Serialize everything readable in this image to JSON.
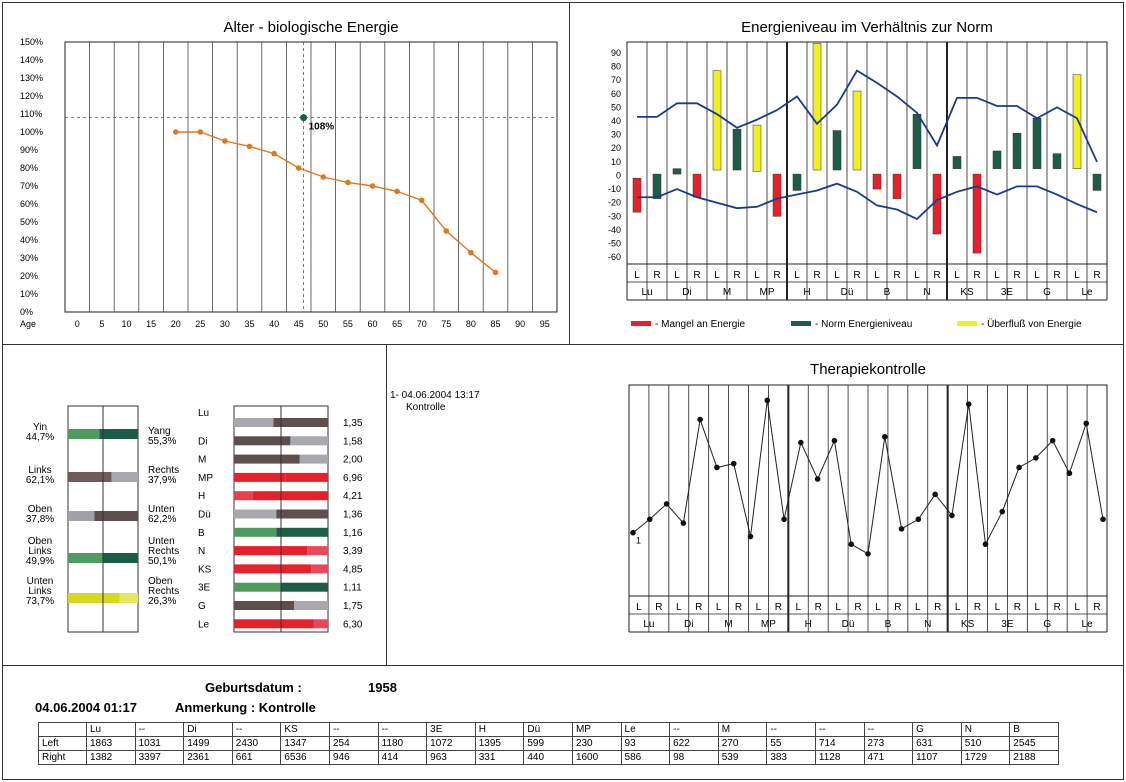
{
  "chart_data": [
    {
      "type": "line",
      "title": "Alter - biologische Energie",
      "xlabel": "Age",
      "x_ticks": [
        0,
        5,
        10,
        15,
        20,
        25,
        30,
        35,
        40,
        45,
        50,
        55,
        60,
        65,
        70,
        75,
        80,
        85,
        90,
        95
      ],
      "y_ticks": [
        "0%",
        "10%",
        "20%",
        "30%",
        "40%",
        "50%",
        "60%",
        "70%",
        "80%",
        "90%",
        "100%",
        "110%",
        "120%",
        "130%",
        "140%",
        "150%"
      ],
      "ylim": [
        0,
        150
      ],
      "x": [
        20,
        25,
        30,
        35,
        40,
        45,
        50,
        55,
        60,
        65,
        70,
        75,
        80,
        85
      ],
      "values": [
        100,
        100,
        95,
        92,
        88,
        80,
        75,
        72,
        70,
        67,
        62,
        45,
        33,
        22
      ],
      "marker": {
        "x": 46,
        "y": 108,
        "label": "108%"
      },
      "color": "#e07820"
    },
    {
      "type": "bar",
      "title": "Energieniveau im Verhältnis zur Norm",
      "y_ticks": [
        -60,
        -50,
        -40,
        -30,
        -20,
        -10,
        0,
        10,
        20,
        30,
        40,
        50,
        60,
        70,
        80,
        90
      ],
      "ylim": [
        -65,
        98
      ],
      "groups": [
        "Lu",
        "Di",
        "M",
        "MP",
        "H",
        "Dü",
        "B",
        "N",
        "KS",
        "3E",
        "G",
        "Le"
      ],
      "sides": [
        "L",
        "R"
      ],
      "bars": [
        {
          "top": -2,
          "bottom": -27,
          "type": "mangel"
        },
        {
          "top": 1,
          "bottom": -17,
          "type": "norm"
        },
        {
          "top": 5,
          "bottom": 1,
          "type": "norm"
        },
        {
          "top": 1,
          "bottom": -16,
          "type": "mangel"
        },
        {
          "top": 77,
          "bottom": 4,
          "type": "ueberfluss"
        },
        {
          "top": 34,
          "bottom": 4,
          "type": "norm"
        },
        {
          "top": 37,
          "bottom": 3,
          "type": "ueberfluss"
        },
        {
          "top": 1,
          "bottom": -30,
          "type": "mangel"
        },
        {
          "top": 1,
          "bottom": -11,
          "type": "norm"
        },
        {
          "top": 97,
          "bottom": 4,
          "type": "ueberfluss"
        },
        {
          "top": 33,
          "bottom": 4,
          "type": "norm"
        },
        {
          "top": 62,
          "bottom": 4,
          "type": "ueberfluss"
        },
        {
          "top": 1,
          "bottom": -10,
          "type": "mangel"
        },
        {
          "top": 1,
          "bottom": -17,
          "type": "mangel"
        },
        {
          "top": 45,
          "bottom": 5,
          "type": "norm"
        },
        {
          "top": 1,
          "bottom": -43,
          "type": "mangel"
        },
        {
          "top": 14,
          "bottom": 5,
          "type": "norm"
        },
        {
          "top": 1,
          "bottom": -57,
          "type": "mangel"
        },
        {
          "top": 18,
          "bottom": 5,
          "type": "norm"
        },
        {
          "top": 31,
          "bottom": 5,
          "type": "norm"
        },
        {
          "top": 42,
          "bottom": 5,
          "type": "norm"
        },
        {
          "top": 16,
          "bottom": 5,
          "type": "norm"
        },
        {
          "top": 74,
          "bottom": 5,
          "type": "ueberfluss"
        },
        {
          "top": 1,
          "bottom": -11,
          "type": "norm"
        }
      ],
      "upper_line": [
        43,
        43,
        53,
        53,
        45,
        35,
        41,
        48,
        58,
        38,
        52,
        77,
        68,
        58,
        46,
        22,
        57,
        57,
        51,
        51,
        42,
        50,
        42,
        10
      ],
      "lower_line": [
        -16,
        -16,
        -10,
        -16,
        -20,
        -24,
        -23,
        -17,
        -14,
        -11,
        -6,
        -12,
        -22,
        -25,
        -32,
        -18,
        -12,
        -8,
        -14,
        -8,
        -8,
        -14,
        -21,
        -27
      ],
      "legend": [
        {
          "label": "- Mangel an Energie",
          "color": "#e8202a"
        },
        {
          "label": "- Norm Energieniveau",
          "color": "#1e5c4a"
        },
        {
          "label": "- Überfluß von Energie",
          "color": "#f0f020"
        }
      ],
      "colors": {
        "mangel": "#e8202a",
        "norm": "#1e5c4a",
        "ueberfluss": "#f0f020",
        "line": "#1a3a8c"
      }
    },
    {
      "type": "line",
      "title": "Therapiekontrolle",
      "groups": [
        "Lu",
        "Di",
        "M",
        "MP",
        "H",
        "Dü",
        "B",
        "N",
        "KS",
        "3E",
        "G",
        "Le"
      ],
      "sides": [
        "L",
        "R"
      ],
      "values": [
        33,
        40,
        48,
        38,
        92,
        67,
        69,
        31,
        102,
        40,
        80,
        61,
        81,
        27,
        22,
        83,
        35,
        40,
        53,
        42,
        100,
        27,
        44,
        67,
        72,
        81,
        64,
        90,
        40
      ],
      "point_label": "1"
    }
  ],
  "balance": {
    "rows": [
      {
        "left_label": "Yin",
        "left_val": "44,7%",
        "right_label": "Yang",
        "right_val": "55,3%",
        "a": 0.447,
        "ca": "#4f9a5e",
        "cb": "#1e5c4a"
      },
      {
        "left_label": "Links",
        "left_val": "62,1%",
        "right_label": "Rechts",
        "right_val": "37,9%",
        "a": 0.621,
        "ca": "#6e5a5a",
        "cb": "#a8a8ae"
      },
      {
        "left_label": "Oben",
        "left_val": "37,8%",
        "right_label": "Unten",
        "right_val": "62,2%",
        "a": 0.378,
        "ca": "#a0a0a8",
        "cb": "#5e4e4e"
      },
      {
        "left_label": "Oben Links",
        "left_val": "49,9%",
        "right_label": "Unten Rechts",
        "right_val": "50,1%",
        "a": 0.499,
        "ca": "#4f9a5e",
        "cb": "#1e5c4a"
      },
      {
        "left_label": "Unten Links",
        "left_val": "73,7%",
        "right_label": "Oben Rechts",
        "right_val": "26,3%",
        "a": 0.737,
        "ca": "#d8d820",
        "cb": "#e8e860"
      }
    ],
    "meridians": [
      {
        "name": "Lu",
        "value": "1,35",
        "a": 0.42,
        "ca": "#a8a8ae",
        "cb": "#5e4e4e"
      },
      {
        "name": "Di",
        "value": "1,58",
        "a": 0.6,
        "ca": "#5e4e4e",
        "cb": "#a8a8ae"
      },
      {
        "name": "M",
        "value": "2,00",
        "a": 0.7,
        "ca": "#5e4e4e",
        "cb": "#a8a8ae"
      },
      {
        "name": "MP",
        "value": "6,96",
        "a": 0.55,
        "ca": "#e8202a",
        "cb": "#e8202a"
      },
      {
        "name": "H",
        "value": "4,21",
        "a": 0.2,
        "ca": "#e84050",
        "cb": "#e8202a"
      },
      {
        "name": "Dü",
        "value": "1,36",
        "a": 0.45,
        "ca": "#a8a8ae",
        "cb": "#5e4e4e"
      },
      {
        "name": "B",
        "value": "1,16",
        "a": 0.45,
        "ca": "#4f9a5e",
        "cb": "#1e5c4a"
      },
      {
        "name": "N",
        "value": "3,39",
        "a": 0.78,
        "ca": "#e8202a",
        "cb": "#e84858"
      },
      {
        "name": "KS",
        "value": "4,85",
        "a": 0.82,
        "ca": "#e8202a",
        "cb": "#e84858"
      },
      {
        "name": "3E",
        "value": "1,11",
        "a": 0.5,
        "ca": "#4f9a5e",
        "cb": "#1e5c4a"
      },
      {
        "name": "G",
        "value": "1,75",
        "a": 0.64,
        "ca": "#5e4e4e",
        "cb": "#a8a8ae"
      },
      {
        "name": "Le",
        "value": "6,30",
        "a": 0.85,
        "ca": "#e8202a",
        "cb": "#e84858"
      }
    ]
  },
  "session": {
    "entry": "1- 04.06.2004 13:17",
    "note": "Kontrolle"
  },
  "info": {
    "geb_label": "Geburtsdatum :",
    "geb_value": "1958",
    "datetime": "04.06.2004 01:17",
    "anm": "Anmerkung : Kontrolle"
  },
  "table": {
    "headers": [
      "Lu",
      "--",
      "Di",
      "--",
      "KS",
      "--",
      "--",
      "3E",
      "H",
      "Dü",
      "MP",
      "Le",
      "--",
      "M",
      "--",
      "--",
      "--",
      "G",
      "N",
      "B"
    ],
    "rows": [
      {
        "label": "Left",
        "values": [
          "1863",
          "1031",
          "1499",
          "2430",
          "1347",
          "254",
          "1180",
          "1072",
          "1395",
          "599",
          "230",
          "93",
          "622",
          "270",
          "55",
          "714",
          "273",
          "631",
          "510",
          "2545"
        ]
      },
      {
        "label": "Right",
        "values": [
          "1382",
          "3397",
          "2361",
          "661",
          "6536",
          "946",
          "414",
          "963",
          "331",
          "440",
          "1600",
          "586",
          "98",
          "539",
          "383",
          "1128",
          "471",
          "1107",
          "1729",
          "2188"
        ]
      }
    ]
  }
}
